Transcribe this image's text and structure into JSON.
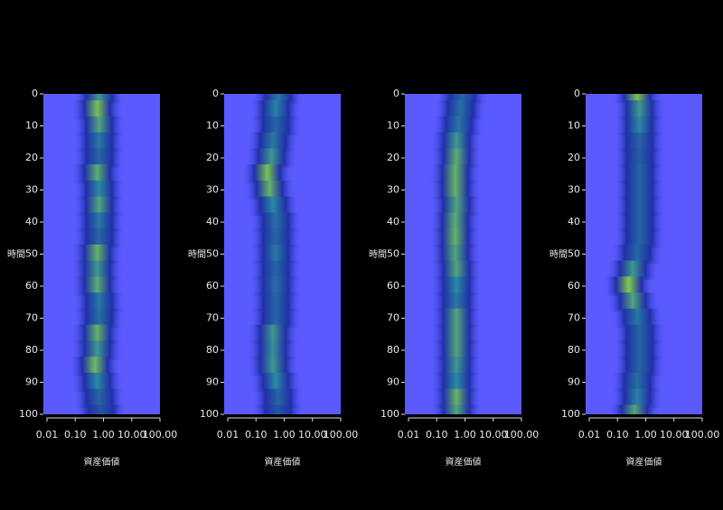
{
  "chart_data": [
    {
      "type": "heatmap",
      "ylabel": "時間",
      "xlabel": "資産価値",
      "log_x": true,
      "xlim": [
        0.01,
        100
      ],
      "xticks": [
        {
          "value": 0.01,
          "label": "0.01"
        },
        {
          "value": 0.1,
          "label": "0.10"
        },
        {
          "value": 1,
          "label": "1.00"
        },
        {
          "value": 10,
          "label": "10.00"
        },
        {
          "value": 100,
          "label": "100.00"
        }
      ],
      "ylim": [
        0,
        100
      ],
      "yticks": [
        0,
        10,
        20,
        30,
        40,
        50,
        60,
        70,
        80,
        90,
        100
      ],
      "colors": [
        "#2030a8",
        "#2a8aa0",
        "#8ad040"
      ],
      "background": "#5a5aff",
      "y": [
        0,
        5,
        10,
        15,
        20,
        25,
        30,
        35,
        40,
        45,
        50,
        55,
        60,
        65,
        70,
        75,
        80,
        85,
        90,
        95,
        100
      ],
      "values": [
        0.6,
        0.9,
        0.7,
        0.4,
        0.3,
        0.75,
        0.5,
        0.7,
        0.4,
        0.3,
        0.8,
        0.6,
        0.75,
        0.4,
        0.35,
        0.8,
        0.6,
        0.85,
        0.5,
        0.3,
        0.2
      ],
      "center": [
        0.7,
        0.6,
        0.7,
        0.7,
        0.7,
        0.6,
        0.7,
        0.7,
        0.7,
        0.7,
        0.6,
        0.6,
        0.6,
        0.7,
        0.7,
        0.6,
        0.6,
        0.5,
        0.6,
        0.7,
        0.8
      ]
    },
    {
      "type": "heatmap",
      "ylabel": "時間",
      "xlabel": "資産価値",
      "log_x": true,
      "xlim": [
        0.01,
        100
      ],
      "xticks": [
        {
          "value": 0.01,
          "label": "0.01"
        },
        {
          "value": 0.1,
          "label": "0.10"
        },
        {
          "value": 1,
          "label": "1.00"
        },
        {
          "value": 10,
          "label": "10.00"
        },
        {
          "value": 100,
          "label": "100.00"
        }
      ],
      "ylim": [
        0,
        100
      ],
      "yticks": [
        0,
        10,
        20,
        30,
        40,
        50,
        60,
        70,
        80,
        90,
        100
      ],
      "colors": [
        "#2030a8",
        "#2a8aa0",
        "#8ad040"
      ],
      "background": "#5a5aff",
      "y": [
        0,
        5,
        10,
        15,
        20,
        25,
        30,
        35,
        40,
        45,
        50,
        55,
        60,
        65,
        70,
        75,
        80,
        85,
        90,
        95,
        100
      ],
      "values": [
        0.4,
        0.45,
        0.3,
        0.4,
        0.6,
        0.9,
        0.8,
        0.5,
        0.35,
        0.3,
        0.4,
        0.3,
        0.35,
        0.3,
        0.3,
        0.6,
        0.55,
        0.6,
        0.5,
        0.3,
        0.2
      ],
      "center": [
        0.6,
        0.5,
        0.5,
        0.4,
        0.35,
        0.25,
        0.3,
        0.4,
        0.5,
        0.5,
        0.5,
        0.5,
        0.5,
        0.5,
        0.5,
        0.4,
        0.4,
        0.4,
        0.5,
        0.6,
        0.6
      ]
    },
    {
      "type": "heatmap",
      "ylabel": "時間",
      "xlabel": "資産価値",
      "log_x": true,
      "xlim": [
        0.01,
        100
      ],
      "xticks": [
        {
          "value": 0.01,
          "label": "0.01"
        },
        {
          "value": 0.1,
          "label": "0.10"
        },
        {
          "value": 1,
          "label": "1.00"
        },
        {
          "value": 10,
          "label": "10.00"
        },
        {
          "value": 100,
          "label": "100.00"
        }
      ],
      "ylim": [
        0,
        100
      ],
      "yticks": [
        0,
        10,
        20,
        30,
        40,
        50,
        60,
        70,
        80,
        90,
        100
      ],
      "colors": [
        "#2030a8",
        "#2a8aa0",
        "#8ad040"
      ],
      "background": "#5a5aff",
      "y": [
        0,
        5,
        10,
        15,
        20,
        25,
        30,
        35,
        40,
        45,
        50,
        55,
        60,
        65,
        70,
        75,
        80,
        85,
        90,
        95,
        100
      ],
      "values": [
        0.3,
        0.35,
        0.4,
        0.6,
        0.75,
        0.8,
        0.8,
        0.7,
        0.75,
        0.8,
        0.7,
        0.7,
        0.5,
        0.4,
        0.7,
        0.7,
        0.7,
        0.6,
        0.5,
        0.8,
        0.7
      ],
      "center": [
        0.8,
        0.7,
        0.6,
        0.5,
        0.5,
        0.45,
        0.45,
        0.5,
        0.45,
        0.45,
        0.45,
        0.5,
        0.5,
        0.5,
        0.5,
        0.5,
        0.5,
        0.5,
        0.5,
        0.5,
        0.5
      ]
    },
    {
      "type": "heatmap",
      "ylabel": "時間",
      "xlabel": "資産価値",
      "log_x": true,
      "xlim": [
        0.01,
        100
      ],
      "xticks": [
        {
          "value": 0.01,
          "label": "0.01"
        },
        {
          "value": 0.1,
          "label": "0.10"
        },
        {
          "value": 1,
          "label": "1.00"
        },
        {
          "value": 10,
          "label": "10.00"
        },
        {
          "value": 100,
          "label": "100.00"
        }
      ],
      "ylim": [
        0,
        100
      ],
      "yticks": [
        0,
        10,
        20,
        30,
        40,
        50,
        60,
        70,
        80,
        90,
        100
      ],
      "colors": [
        "#2030a8",
        "#2a8aa0",
        "#8ad040"
      ],
      "background": "#5a5aff",
      "y": [
        0,
        5,
        10,
        15,
        20,
        25,
        30,
        35,
        40,
        45,
        50,
        55,
        60,
        65,
        70,
        75,
        80,
        85,
        90,
        95,
        100
      ],
      "values": [
        0.9,
        0.6,
        0.5,
        0.3,
        0.25,
        0.3,
        0.3,
        0.3,
        0.3,
        0.3,
        0.3,
        0.6,
        0.95,
        0.7,
        0.4,
        0.3,
        0.3,
        0.3,
        0.35,
        0.45,
        0.7
      ],
      "center": [
        0.5,
        0.6,
        0.6,
        0.6,
        0.6,
        0.6,
        0.6,
        0.6,
        0.6,
        0.6,
        0.5,
        0.35,
        0.25,
        0.35,
        0.5,
        0.6,
        0.6,
        0.6,
        0.5,
        0.5,
        0.4
      ]
    }
  ]
}
